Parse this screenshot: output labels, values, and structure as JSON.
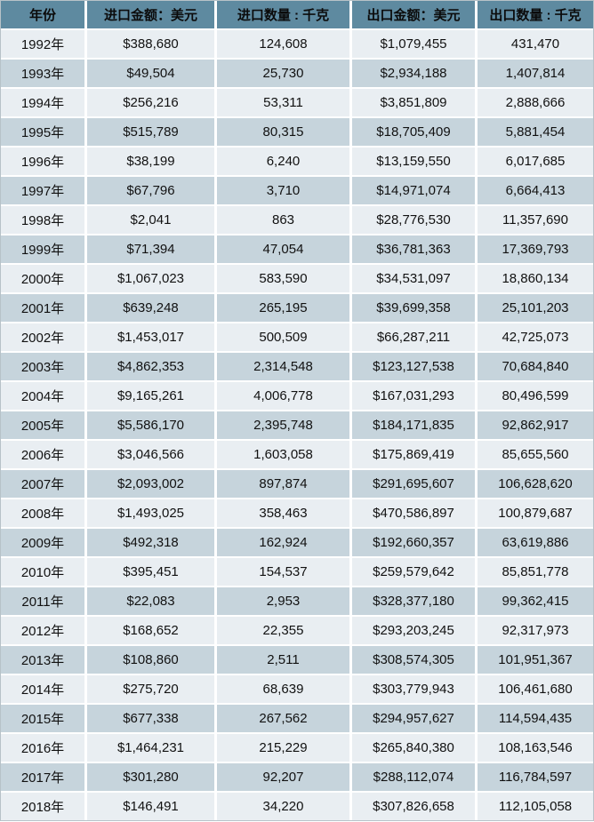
{
  "colors": {
    "page_bg": "#ffffff",
    "header_bg": "#5e8aa0",
    "row_light": "#e9eef2",
    "row_dark": "#c6d4dc",
    "grid": "#ffffff",
    "text": "#111111"
  },
  "chart_data": {
    "type": "table",
    "title": "",
    "columns": [
      "年份",
      "进口金额：美元",
      "进口数量 : 千克",
      "出口金额：美元",
      "出口数量 : 千克"
    ],
    "rows": [
      [
        "1992年",
        "$388,680",
        "124,608",
        "$1,079,455",
        "431,470"
      ],
      [
        "1993年",
        "$49,504",
        "25,730",
        "$2,934,188",
        "1,407,814"
      ],
      [
        "1994年",
        "$256,216",
        "53,311",
        "$3,851,809",
        "2,888,666"
      ],
      [
        "1995年",
        "$515,789",
        "80,315",
        "$18,705,409",
        "5,881,454"
      ],
      [
        "1996年",
        "$38,199",
        "6,240",
        "$13,159,550",
        "6,017,685"
      ],
      [
        "1997年",
        "$67,796",
        "3,710",
        "$14,971,074",
        "6,664,413"
      ],
      [
        "1998年",
        "$2,041",
        "863",
        "$28,776,530",
        "11,357,690"
      ],
      [
        "1999年",
        "$71,394",
        "47,054",
        "$36,781,363",
        "17,369,793"
      ],
      [
        "2000年",
        "$1,067,023",
        "583,590",
        "$34,531,097",
        "18,860,134"
      ],
      [
        "2001年",
        "$639,248",
        "265,195",
        "$39,699,358",
        "25,101,203"
      ],
      [
        "2002年",
        "$1,453,017",
        "500,509",
        "$66,287,211",
        "42,725,073"
      ],
      [
        "2003年",
        "$4,862,353",
        "2,314,548",
        "$123,127,538",
        "70,684,840"
      ],
      [
        "2004年",
        "$9,165,261",
        "4,006,778",
        "$167,031,293",
        "80,496,599"
      ],
      [
        "2005年",
        "$5,586,170",
        "2,395,748",
        "$184,171,835",
        "92,862,917"
      ],
      [
        "2006年",
        "$3,046,566",
        "1,603,058",
        "$175,869,419",
        "85,655,560"
      ],
      [
        "2007年",
        "$2,093,002",
        "897,874",
        "$291,695,607",
        "106,628,620"
      ],
      [
        "2008年",
        "$1,493,025",
        "358,463",
        "$470,586,897",
        "100,879,687"
      ],
      [
        "2009年",
        "$492,318",
        "162,924",
        "$192,660,357",
        "63,619,886"
      ],
      [
        "2010年",
        "$395,451",
        "154,537",
        "$259,579,642",
        "85,851,778"
      ],
      [
        "2011年",
        "$22,083",
        "2,953",
        "$328,377,180",
        "99,362,415"
      ],
      [
        "2012年",
        "$168,652",
        "22,355",
        "$293,203,245",
        "92,317,973"
      ],
      [
        "2013年",
        "$108,860",
        "2,511",
        "$308,574,305",
        "101,951,367"
      ],
      [
        "2014年",
        "$275,720",
        "68,639",
        "$303,779,943",
        "106,461,680"
      ],
      [
        "2015年",
        "$677,338",
        "267,562",
        "$294,957,627",
        "114,594,435"
      ],
      [
        "2016年",
        "$1,464,231",
        "215,229",
        "$265,840,380",
        "108,163,546"
      ],
      [
        "2017年",
        "$301,280",
        "92,207",
        "$288,112,074",
        "116,784,597"
      ],
      [
        "2018年",
        "$146,491",
        "34,220",
        "$307,826,658",
        "112,105,058"
      ]
    ]
  }
}
